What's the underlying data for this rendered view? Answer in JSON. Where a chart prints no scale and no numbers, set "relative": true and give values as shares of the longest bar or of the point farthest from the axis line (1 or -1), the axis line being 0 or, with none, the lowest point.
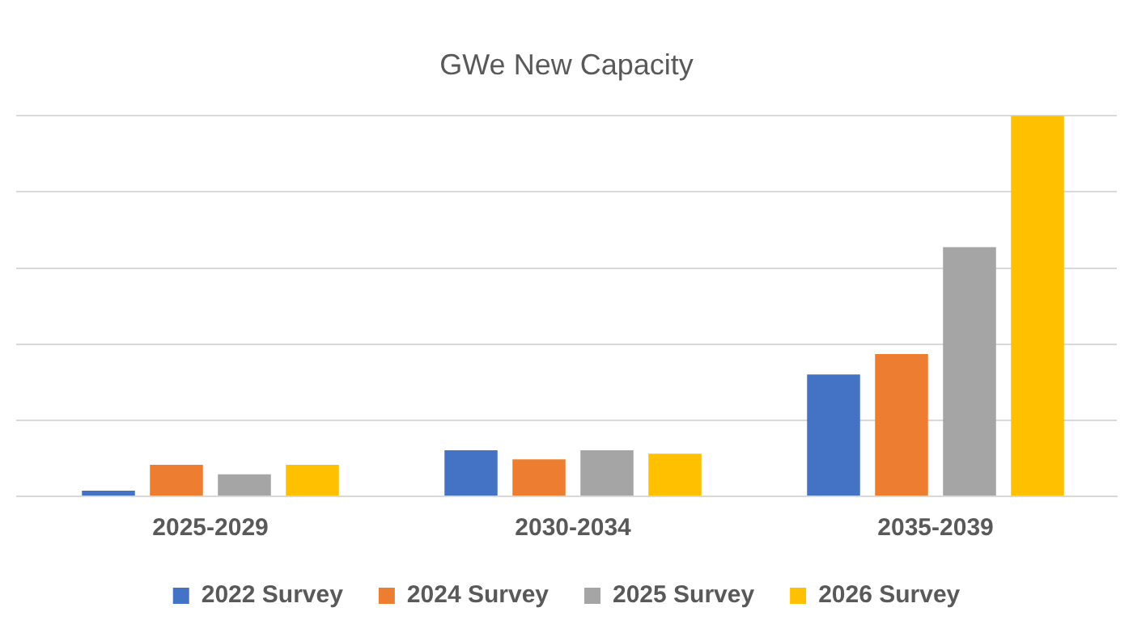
{
  "chart_data": {
    "type": "bar",
    "title": "GWe New Capacity",
    "categories": [
      "2025-2029",
      "2030-2034",
      "2035-2039"
    ],
    "relative": true,
    "grid": "y",
    "legend": "bottom",
    "series": [
      {
        "name": "2022 Survey",
        "color": "#4472c4",
        "values": [
          0.015,
          0.121,
          0.32
        ]
      },
      {
        "name": "2024 Survey",
        "color": "#ed7d31",
        "values": [
          0.083,
          0.097,
          0.374
        ]
      },
      {
        "name": "2025 Survey",
        "color": "#a5a5a5",
        "values": [
          0.058,
          0.121,
          0.655
        ]
      },
      {
        "name": "2026 Survey",
        "color": "#ffc000",
        "values": [
          0.083,
          0.112,
          1
        ]
      }
    ]
  }
}
